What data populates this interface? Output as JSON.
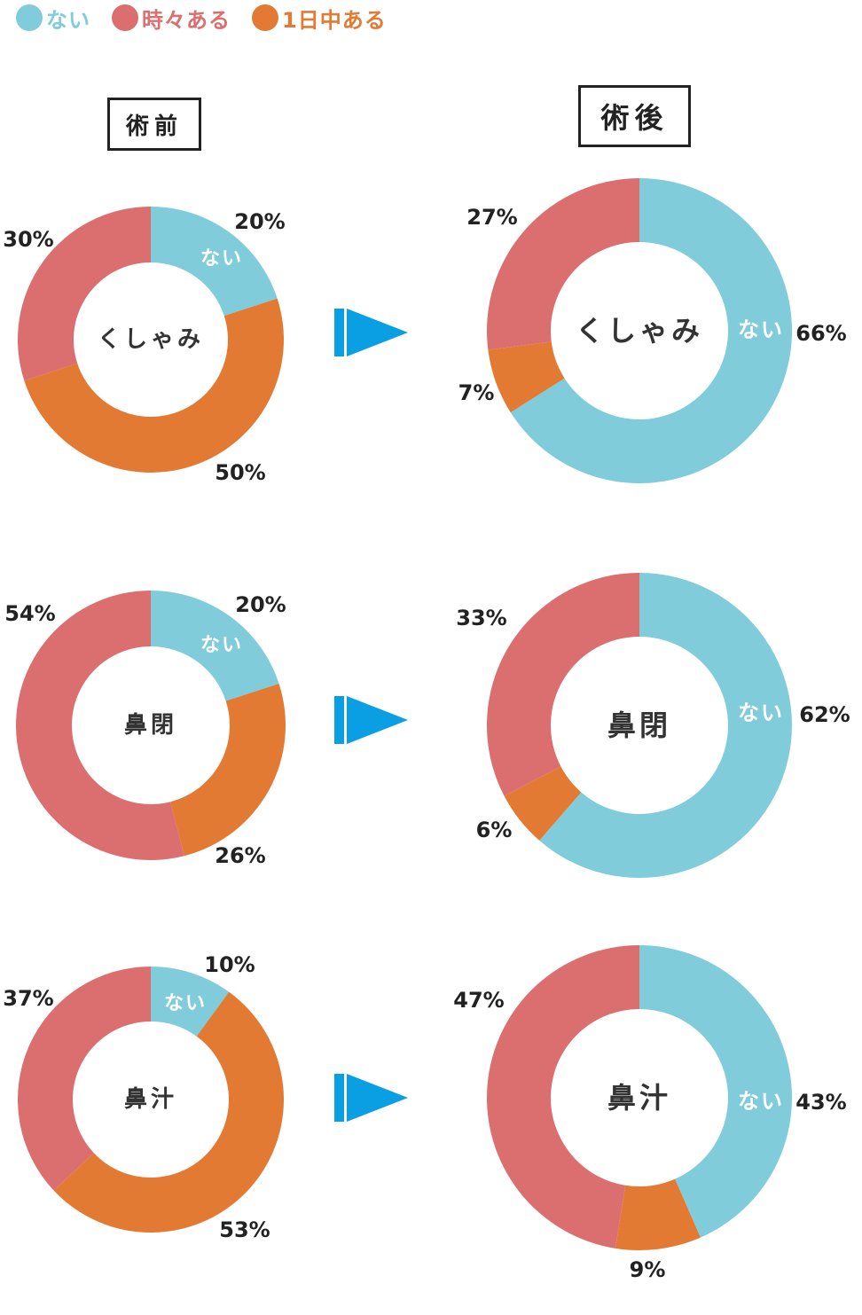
{
  "legend": [
    {
      "label": "ない",
      "color": "#80ccdb"
    },
    {
      "label": "時々ある",
      "color": "#db6f6f"
    },
    {
      "label": "1日中ある",
      "color": "#e27a33"
    }
  ],
  "columns": {
    "before": "術前",
    "after": "術後"
  },
  "chart_data": [
    {
      "type": "pie",
      "variant": "donut",
      "column": "術前",
      "center_label": "くしゃみ",
      "categories": [
        "ない",
        "1日中ある",
        "時々ある"
      ],
      "values": [
        20,
        50,
        30
      ],
      "labels": [
        "20%",
        "50%",
        "30%"
      ],
      "inner_label": "ない"
    },
    {
      "type": "pie",
      "variant": "donut",
      "column": "術後",
      "center_label": "くしゃみ",
      "categories": [
        "ない",
        "1日中ある",
        "時々ある"
      ],
      "values": [
        66,
        7,
        27
      ],
      "labels": [
        "66%",
        "7%",
        "27%"
      ],
      "inner_label": "ない"
    },
    {
      "type": "pie",
      "variant": "donut",
      "column": "術前",
      "center_label": "鼻閉",
      "categories": [
        "ない",
        "1日中ある",
        "時々ある"
      ],
      "values": [
        20,
        26,
        54
      ],
      "labels": [
        "20%",
        "26%",
        "54%"
      ],
      "inner_label": "ない"
    },
    {
      "type": "pie",
      "variant": "donut",
      "column": "術後",
      "center_label": "鼻閉",
      "categories": [
        "ない",
        "1日中ある",
        "時々ある"
      ],
      "values": [
        62,
        6,
        33
      ],
      "labels": [
        "62%",
        "6%",
        "33%"
      ],
      "inner_label": "ない"
    },
    {
      "type": "pie",
      "variant": "donut",
      "column": "術前",
      "center_label": "鼻汁",
      "categories": [
        "ない",
        "1日中ある",
        "時々ある"
      ],
      "values": [
        10,
        53,
        37
      ],
      "labels": [
        "10%",
        "53%",
        "37%"
      ],
      "inner_label": "ない"
    },
    {
      "type": "pie",
      "variant": "donut",
      "column": "術後",
      "center_label": "鼻汁",
      "categories": [
        "ない",
        "1日中ある",
        "時々ある"
      ],
      "values": [
        43,
        9,
        47
      ],
      "labels": [
        "43%",
        "9%",
        "47%"
      ],
      "inner_label": "ない"
    }
  ],
  "arrow_color": "#0a9fe3"
}
